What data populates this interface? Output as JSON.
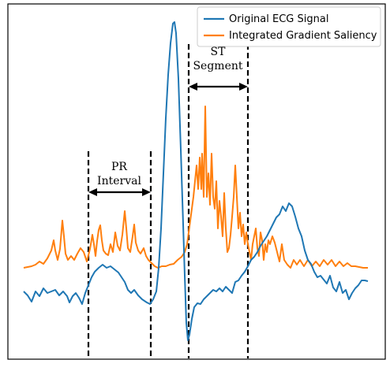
{
  "chart_data": {
    "type": "line",
    "title": "",
    "xlabel": "",
    "ylabel": "",
    "grid": false,
    "legend_position": "top-right",
    "colors": {
      "ecg": "#1f77b4",
      "saliency": "#ff7f0e",
      "frame": "#000000"
    },
    "series": [
      {
        "name": "Original ECG Signal",
        "color": "#1f77b4",
        "points": [
          [
            30,
            370
          ],
          [
            35,
            375
          ],
          [
            40,
            383
          ],
          [
            45,
            370
          ],
          [
            50,
            376
          ],
          [
            55,
            366
          ],
          [
            60,
            372
          ],
          [
            65,
            370
          ],
          [
            70,
            368
          ],
          [
            75,
            375
          ],
          [
            80,
            370
          ],
          [
            85,
            376
          ],
          [
            88,
            384
          ],
          [
            92,
            376
          ],
          [
            96,
            372
          ],
          [
            100,
            378
          ],
          [
            104,
            386
          ],
          [
            108,
            372
          ],
          [
            112,
            362
          ],
          [
            116,
            352
          ],
          [
            120,
            345
          ],
          [
            125,
            340
          ],
          [
            130,
            336
          ],
          [
            135,
            340
          ],
          [
            140,
            338
          ],
          [
            145,
            342
          ],
          [
            150,
            346
          ],
          [
            154,
            352
          ],
          [
            158,
            358
          ],
          [
            162,
            368
          ],
          [
            166,
            372
          ],
          [
            170,
            368
          ],
          [
            175,
            375
          ],
          [
            180,
            380
          ],
          [
            186,
            384
          ],
          [
            190,
            386
          ],
          [
            194,
            380
          ],
          [
            198,
            370
          ],
          [
            201,
            340
          ],
          [
            204,
            290
          ],
          [
            207,
            220
          ],
          [
            210,
            150
          ],
          [
            213,
            95
          ],
          [
            216,
            55
          ],
          [
            219,
            30
          ],
          [
            221,
            28
          ],
          [
            223,
            42
          ],
          [
            226,
            100
          ],
          [
            229,
            190
          ],
          [
            232,
            285
          ],
          [
            234,
            350
          ],
          [
            236,
            410
          ],
          [
            238,
            432
          ],
          [
            240,
            425
          ],
          [
            243,
            405
          ],
          [
            246,
            390
          ],
          [
            250,
            385
          ],
          [
            254,
            386
          ],
          [
            258,
            380
          ],
          [
            262,
            376
          ],
          [
            266,
            372
          ],
          [
            270,
            368
          ],
          [
            274,
            370
          ],
          [
            278,
            366
          ],
          [
            282,
            370
          ],
          [
            286,
            364
          ],
          [
            290,
            368
          ],
          [
            294,
            372
          ],
          [
            298,
            358
          ],
          [
            302,
            356
          ],
          [
            306,
            350
          ],
          [
            310,
            345
          ],
          [
            314,
            338
          ],
          [
            318,
            330
          ],
          [
            322,
            326
          ],
          [
            326,
            320
          ],
          [
            330,
            312
          ],
          [
            334,
            306
          ],
          [
            338,
            300
          ],
          [
            342,
            292
          ],
          [
            346,
            284
          ],
          [
            350,
            276
          ],
          [
            354,
            272
          ],
          [
            358,
            262
          ],
          [
            362,
            268
          ],
          [
            366,
            258
          ],
          [
            370,
            262
          ],
          [
            374,
            275
          ],
          [
            378,
            290
          ],
          [
            382,
            300
          ],
          [
            386,
            318
          ],
          [
            390,
            330
          ],
          [
            394,
            335
          ],
          [
            398,
            345
          ],
          [
            402,
            352
          ],
          [
            406,
            350
          ],
          [
            410,
            355
          ],
          [
            414,
            360
          ],
          [
            418,
            350
          ],
          [
            422,
            365
          ],
          [
            426,
            370
          ],
          [
            430,
            358
          ],
          [
            434,
            372
          ],
          [
            438,
            368
          ],
          [
            442,
            380
          ],
          [
            446,
            372
          ],
          [
            450,
            366
          ],
          [
            454,
            362
          ],
          [
            458,
            356
          ],
          [
            462,
            356
          ],
          [
            466,
            357
          ]
        ]
      },
      {
        "name": "Integrated Gradient Saliency",
        "color": "#ff7f0e",
        "points": [
          [
            30,
            340
          ],
          [
            35,
            339
          ],
          [
            40,
            338
          ],
          [
            45,
            336
          ],
          [
            50,
            332
          ],
          [
            55,
            335
          ],
          [
            60,
            328
          ],
          [
            65,
            318
          ],
          [
            68,
            305
          ],
          [
            70,
            318
          ],
          [
            73,
            330
          ],
          [
            76,
            316
          ],
          [
            79,
            280
          ],
          [
            81,
            300
          ],
          [
            83,
            322
          ],
          [
            86,
            330
          ],
          [
            90,
            325
          ],
          [
            94,
            330
          ],
          [
            98,
            322
          ],
          [
            102,
            315
          ],
          [
            106,
            320
          ],
          [
            110,
            332
          ],
          [
            114,
            316
          ],
          [
            117,
            298
          ],
          [
            119,
            310
          ],
          [
            121,
            325
          ],
          [
            123,
            306
          ],
          [
            125,
            292
          ],
          [
            127,
            286
          ],
          [
            129,
            305
          ],
          [
            131,
            318
          ],
          [
            134,
            322
          ],
          [
            137,
            324
          ],
          [
            140,
            310
          ],
          [
            143,
            320
          ],
          [
            146,
            295
          ],
          [
            149,
            312
          ],
          [
            152,
            318
          ],
          [
            155,
            298
          ],
          [
            158,
            268
          ],
          [
            160,
            290
          ],
          [
            162,
            315
          ],
          [
            165,
            320
          ],
          [
            168,
            300
          ],
          [
            170,
            285
          ],
          [
            172,
            308
          ],
          [
            175,
            318
          ],
          [
            178,
            322
          ],
          [
            182,
            315
          ],
          [
            185,
            325
          ],
          [
            188,
            330
          ],
          [
            192,
            334
          ],
          [
            196,
            338
          ],
          [
            200,
            340
          ],
          [
            205,
            338
          ],
          [
            210,
            338
          ],
          [
            215,
            336
          ],
          [
            220,
            335
          ],
          [
            225,
            330
          ],
          [
            230,
            326
          ],
          [
            234,
            320
          ],
          [
            237,
            310
          ],
          [
            239,
            295
          ],
          [
            241,
            280
          ],
          [
            243,
            265
          ],
          [
            245,
            250
          ],
          [
            247,
            230
          ],
          [
            249,
            210
          ],
          [
            251,
            240
          ],
          [
            253,
            200
          ],
          [
            255,
            240
          ],
          [
            256,
            195
          ],
          [
            258,
            250
          ],
          [
            260,
            135
          ],
          [
            262,
            250
          ],
          [
            264,
            220
          ],
          [
            266,
            260
          ],
          [
            268,
            195
          ],
          [
            270,
            250
          ],
          [
            272,
            265
          ],
          [
            274,
            230
          ],
          [
            276,
            290
          ],
          [
            278,
            255
          ],
          [
            280,
            275
          ],
          [
            282,
            300
          ],
          [
            284,
            245
          ],
          [
            286,
            290
          ],
          [
            288,
            320
          ],
          [
            290,
            315
          ],
          [
            292,
            298
          ],
          [
            294,
            275
          ],
          [
            296,
            250
          ],
          [
            298,
            210
          ],
          [
            300,
            250
          ],
          [
            302,
            290
          ],
          [
            304,
            270
          ],
          [
            306,
            300
          ],
          [
            308,
            285
          ],
          [
            310,
            310
          ],
          [
            312,
            295
          ],
          [
            314,
            310
          ],
          [
            316,
            320
          ],
          [
            318,
            330
          ],
          [
            320,
            310
          ],
          [
            322,
            300
          ],
          [
            324,
            290
          ],
          [
            326,
            315
          ],
          [
            328,
            325
          ],
          [
            330,
            295
          ],
          [
            332,
            305
          ],
          [
            334,
            330
          ],
          [
            336,
            310
          ],
          [
            338,
            320
          ],
          [
            340,
            305
          ],
          [
            342,
            310
          ],
          [
            345,
            300
          ],
          [
            348,
            308
          ],
          [
            351,
            320
          ],
          [
            354,
            332
          ],
          [
            357,
            310
          ],
          [
            360,
            330
          ],
          [
            364,
            336
          ],
          [
            368,
            340
          ],
          [
            372,
            330
          ],
          [
            376,
            336
          ],
          [
            380,
            330
          ],
          [
            385,
            338
          ],
          [
            390,
            330
          ],
          [
            395,
            338
          ],
          [
            400,
            332
          ],
          [
            405,
            338
          ],
          [
            410,
            330
          ],
          [
            415,
            336
          ],
          [
            420,
            330
          ],
          [
            425,
            338
          ],
          [
            430,
            332
          ],
          [
            435,
            338
          ],
          [
            440,
            334
          ],
          [
            445,
            338
          ],
          [
            450,
            338
          ],
          [
            455,
            339
          ],
          [
            460,
            340
          ],
          [
            466,
            340
          ]
        ]
      }
    ],
    "vlines": [
      112,
      191,
      239,
      314
    ],
    "annotations": [
      {
        "id": "pr",
        "lines": [
          "PR",
          "Interval"
        ],
        "x_from": 112,
        "x_to": 191,
        "arrow_y": 244
      },
      {
        "id": "st",
        "lines": [
          "ST",
          "Segment"
        ],
        "x_from": 239,
        "x_to": 314,
        "arrow_y": 110
      }
    ]
  }
}
